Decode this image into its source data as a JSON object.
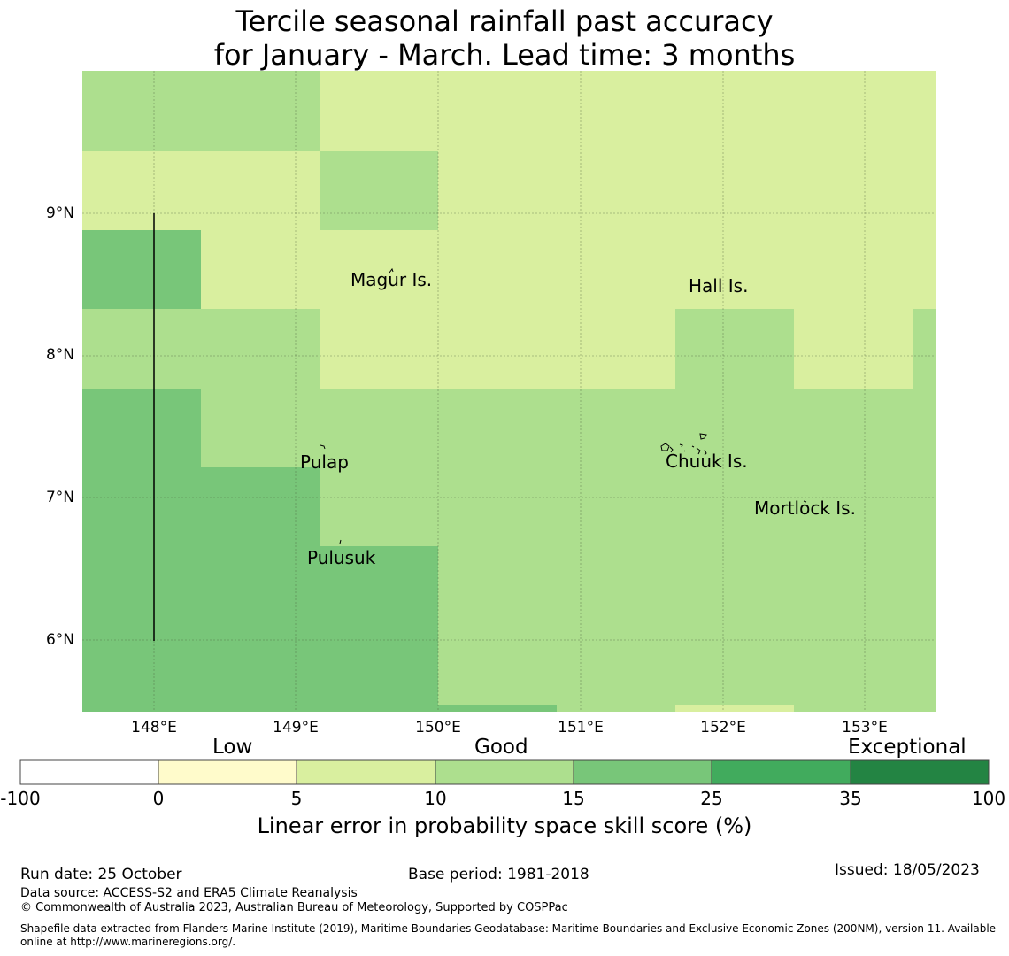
{
  "title": {
    "line1": "Tercile seasonal rainfall past accuracy",
    "line2": "for January - March. Lead time: 3 months"
  },
  "map": {
    "lat_labels": [
      "9°N",
      "8°N",
      "7°N",
      "6°N"
    ],
    "lon_labels": [
      "148°E",
      "149°E",
      "150°E",
      "151°E",
      "152°E",
      "153°E"
    ],
    "places": [
      "Magur Is.",
      "Hall Is.",
      "Pulap",
      "Chuuk Is.",
      "Mortlock Is.",
      "Pulusuk"
    ]
  },
  "colorbar": {
    "categories": [
      "Low",
      "Good",
      "Exceptional"
    ],
    "ticks": [
      "-100",
      "0",
      "5",
      "10",
      "15",
      "25",
      "35",
      "100"
    ],
    "colors": [
      "#ffffff",
      "#fffbcb",
      "#d9ef9f",
      "#addf8e",
      "#78c679",
      "#41ab5d",
      "#238443"
    ],
    "label": "Linear error in probability space skill score (%)"
  },
  "footer": {
    "run_date": "Run date: 25 October",
    "base_period": "Base period: 1981-2018",
    "issued": "Issued: 18/05/2023",
    "data_source": "Data source: ACCESS-S2 and ERA5 Climate Reanalysis",
    "copyright": "© Commonwealth of Australia 2023, Australian Bureau of Meteorology, Supported by COSPPac",
    "shapefile": "Shapefile data extracted from Flanders Marine Institute (2019), Maritime Boundaries Geodatabase: Maritime Boundaries and Exclusive Economic Zones (200NM), version 11. Available online at http://www.marineregions.org/."
  }
}
